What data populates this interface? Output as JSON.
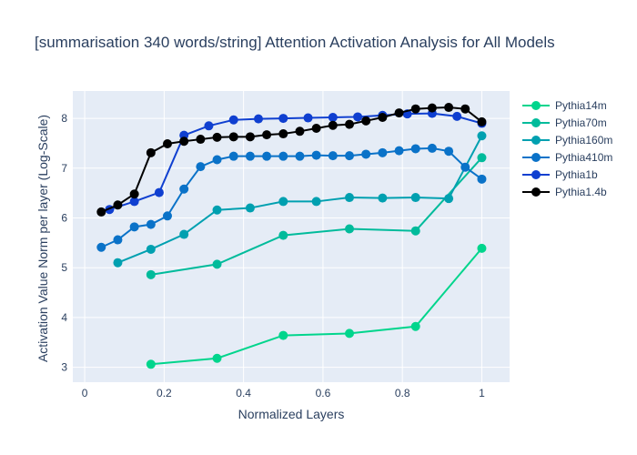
{
  "chart_data": {
    "type": "line",
    "title": "[summarisation 340 words/string] Attention Activation Analysis for All Models",
    "xlabel": "Normalized Layers",
    "ylabel": "Activation Value Norm per layer (Log-Scale)",
    "xlim": [
      -0.03,
      1.07
    ],
    "ylim": [
      2.7,
      8.55
    ],
    "x_ticks": [
      0,
      0.2,
      0.4,
      0.6,
      0.8,
      1
    ],
    "x_tick_labels": [
      "0",
      "0.2",
      "0.4",
      "0.6",
      "0.8",
      "1"
    ],
    "y_ticks": [
      3,
      4,
      5,
      6,
      7,
      8
    ],
    "y_tick_labels": [
      "3",
      "4",
      "5",
      "6",
      "7",
      "8"
    ],
    "grid": true,
    "legend_position": "right",
    "series": [
      {
        "name": "Pythia14m",
        "color": "#00d58c",
        "x": [
          0.1667,
          0.3333,
          0.5,
          0.6667,
          0.8333,
          1.0
        ],
        "y": [
          3.06,
          3.18,
          3.64,
          3.68,
          3.82,
          5.39
        ]
      },
      {
        "name": "Pythia70m",
        "color": "#00bb9b",
        "x": [
          0.1667,
          0.3333,
          0.5,
          0.6667,
          0.8333,
          1.0
        ],
        "y": [
          4.86,
          5.07,
          5.65,
          5.78,
          5.74,
          7.21
        ]
      },
      {
        "name": "Pythia160m",
        "color": "#00a0b0",
        "x": [
          0.0833,
          0.1667,
          0.25,
          0.3333,
          0.4167,
          0.5,
          0.5833,
          0.6667,
          0.75,
          0.8333,
          0.9167,
          1.0
        ],
        "y": [
          5.1,
          5.37,
          5.67,
          6.16,
          6.2,
          6.33,
          6.33,
          6.41,
          6.4,
          6.41,
          6.39,
          7.65
        ]
      },
      {
        "name": "Pythia410m",
        "color": "#0a72c8",
        "x": [
          0.0417,
          0.0833,
          0.125,
          0.1667,
          0.2083,
          0.25,
          0.2917,
          0.3333,
          0.375,
          0.4167,
          0.4583,
          0.5,
          0.5417,
          0.5833,
          0.625,
          0.6667,
          0.7083,
          0.75,
          0.7917,
          0.8333,
          0.875,
          0.9167,
          0.9583,
          1.0
        ],
        "y": [
          5.41,
          5.56,
          5.82,
          5.87,
          6.04,
          6.58,
          7.03,
          7.17,
          7.24,
          7.24,
          7.24,
          7.24,
          7.24,
          7.26,
          7.25,
          7.25,
          7.28,
          7.31,
          7.35,
          7.39,
          7.4,
          7.34,
          7.02,
          6.78
        ]
      },
      {
        "name": "Pythia1b",
        "color": "#0f3fd0",
        "x": [
          0.0625,
          0.125,
          0.1875,
          0.25,
          0.3125,
          0.375,
          0.4375,
          0.5,
          0.5625,
          0.625,
          0.6875,
          0.75,
          0.8125,
          0.875,
          0.9375,
          1.0
        ],
        "y": [
          6.17,
          6.33,
          6.51,
          7.66,
          7.85,
          7.97,
          7.99,
          8.0,
          8.01,
          8.02,
          8.03,
          8.06,
          8.09,
          8.1,
          8.04,
          7.9
        ]
      },
      {
        "name": "Pythia1.4b",
        "color": "#000000",
        "x": [
          0.0417,
          0.0833,
          0.125,
          0.1667,
          0.2083,
          0.25,
          0.2917,
          0.3333,
          0.375,
          0.4167,
          0.4583,
          0.5,
          0.5417,
          0.5833,
          0.625,
          0.6667,
          0.7083,
          0.75,
          0.7917,
          0.8333,
          0.875,
          0.9167,
          0.9583,
          1.0
        ],
        "y": [
          6.12,
          6.26,
          6.48,
          7.31,
          7.49,
          7.54,
          7.58,
          7.62,
          7.63,
          7.63,
          7.67,
          7.69,
          7.74,
          7.8,
          7.86,
          7.88,
          7.95,
          8.02,
          8.11,
          8.19,
          8.21,
          8.22,
          8.19,
          7.93
        ]
      }
    ]
  }
}
